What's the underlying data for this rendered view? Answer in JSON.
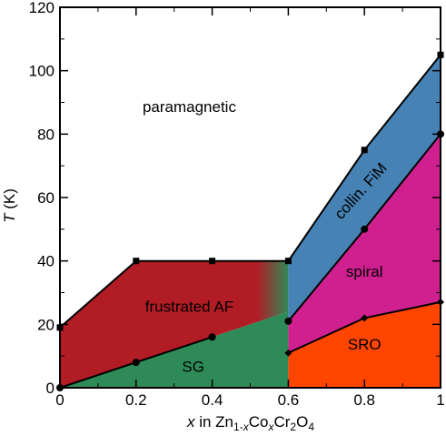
{
  "chart_data": {
    "type": "area",
    "xlabel_parts": {
      "var": "x",
      "in": " in Zn",
      "sub1": "1-",
      "sub1var": "x",
      "co": "Co",
      "sub2var": "x",
      "cr": "Cr",
      "sub3": "2",
      "o": "O",
      "sub4": "4"
    },
    "ylabel_parts": {
      "var": "T",
      "unit": " (K)"
    },
    "xlim": [
      0,
      1
    ],
    "ylim": [
      0,
      120
    ],
    "x_ticks": [
      0,
      0.2,
      0.4,
      0.6,
      0.8,
      1
    ],
    "x_tick_labels": [
      "0",
      "0.2",
      "0.4",
      "0.6",
      "0.8",
      "1"
    ],
    "y_ticks": [
      0,
      20,
      40,
      60,
      80,
      100,
      120
    ],
    "y_tick_labels": [
      "0",
      "20",
      "40",
      "60",
      "80",
      "100",
      "120"
    ],
    "grid": false,
    "colors": {
      "frustrated_af": "#b11c25",
      "sg": "#2e8b57",
      "collin_fim": "#4682b4",
      "spiral": "#d02090",
      "sro": "#ff4500",
      "line": "#000000"
    },
    "series": [
      {
        "id": "upper",
        "marker": "square",
        "x": [
          0,
          0.2,
          0.4,
          0.6,
          0.8,
          1.0
        ],
        "y": [
          19,
          40,
          40,
          40,
          75,
          105
        ]
      },
      {
        "id": "sg",
        "marker": "circle",
        "x": [
          0,
          0.2,
          0.4
        ],
        "y": [
          0,
          8,
          16
        ]
      },
      {
        "id": "spiral",
        "marker": "circle",
        "x": [
          0.6,
          0.8,
          1.0
        ],
        "y": [
          21,
          50,
          80
        ]
      },
      {
        "id": "sro",
        "marker": "diamond",
        "x": [
          0.6,
          0.8,
          1.0
        ],
        "y": [
          11,
          22,
          27
        ]
      }
    ],
    "regions": [
      {
        "id": "paramagnetic",
        "label": "paramagnetic",
        "x": 0.34,
        "y": 87
      },
      {
        "id": "frustrated_af",
        "label": "frustrated AF",
        "x": 0.34,
        "y": 24
      },
      {
        "id": "sg",
        "label": "SG",
        "x": 0.35,
        "y": 5
      },
      {
        "id": "collin_fim",
        "label": "collin. FiM",
        "x": 0.8,
        "y": 61,
        "rotation_deg": -48
      },
      {
        "id": "spiral",
        "label": "spiral",
        "x": 0.8,
        "y": 35
      },
      {
        "id": "sro",
        "label": "SRO",
        "x": 0.8,
        "y": 12
      }
    ]
  }
}
